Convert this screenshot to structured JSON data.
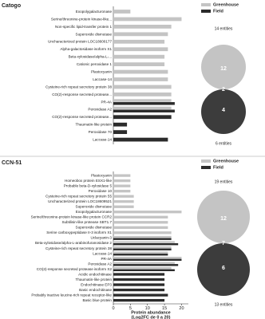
{
  "chart_data": [
    {
      "type": "bar",
      "orientation": "horizontal",
      "title": "Catogo",
      "categories": [
        "Exopolygalacturonase",
        "Serine/threonine-protein kinase-like...",
        "Non-specific lipid-transfer protein 1",
        "Superoxide dismutase",
        "Uncharacterized protein LOC18600177",
        "Alpha-galactosidase isoform X1",
        "Beta-xylosidase/alpha-L-...",
        "Cationic peroxidase 1",
        "Plastocyanin",
        "Laccase-14",
        "Cysteine-rich repeat secretory protein 38",
        "CO(2)-response secreted protease...",
        "PR-4A",
        "Peroxidase A2",
        "CO(2)-response secreted protease...",
        "Thaumatin-like protein",
        "Peroxidase 70",
        "Laccase-14"
      ],
      "series": [
        {
          "name": "Greenhouse",
          "color": "#c4c4c4",
          "values": [
            5,
            20,
            17,
            16,
            15,
            16,
            15,
            15,
            16,
            16,
            17,
            17,
            17,
            17,
            null,
            null,
            null,
            null
          ]
        },
        {
          "name": "Field",
          "color": "#2b2b2b",
          "values": [
            null,
            null,
            null,
            null,
            null,
            null,
            null,
            null,
            null,
            null,
            null,
            null,
            18,
            18,
            17,
            4,
            4,
            16
          ]
        }
      ],
      "xlim": [
        0,
        22
      ],
      "legend": "upper right",
      "venn": {
        "top_label": "14 entities",
        "top_only": 12,
        "both": 2,
        "bottom_only": 4,
        "bottom_label": "6 entities"
      }
    },
    {
      "type": "bar",
      "orientation": "horizontal",
      "title": "CCN-51",
      "categories": [
        "Plastocyanin",
        "Homeobox protein ESX1-like",
        "Probable beta-D-xylosidase 5",
        "Peroxidase 10",
        "Cysteine-rich repeat secretory protein 55",
        "Uncharacterized protein LOC18609521",
        "Superoxide dismutase",
        "Exopolygalacturonase",
        "Serine/threonine-protein kinase-like protein CCR2",
        "Subtilisin-like protease SBT1.7",
        "Superoxide dismutase",
        "Serine carboxypeptidase II-3 isoform X1",
        "Uclacyanin-3",
        "Beta-xylosidase/alpha-L-arabinofuranosidase 2",
        "Cysteine-rich repeat secretory protein 38",
        "Laccase-14",
        "PR-4A",
        "Peroxidase A2",
        "CO(2)-response secreted protease isoform X2",
        "Acidic endochitinase",
        "Thaumatin-like protein",
        "Endochitinase EP3",
        "Basic endochitinase",
        "Probably inactive leucine-rich repeat receptor-like",
        "Basic blue protein"
      ],
      "series": [
        {
          "name": "Greenhouse",
          "color": "#c4c4c4",
          "values": [
            5,
            5,
            5,
            5,
            6,
            6,
            6,
            20,
            16,
            16,
            16,
            17,
            17,
            18,
            17,
            16,
            20,
            18,
            17,
            null,
            null,
            null,
            null,
            null,
            null
          ]
        },
        {
          "name": "Field",
          "color": "#2b2b2b",
          "values": [
            null,
            null,
            null,
            null,
            null,
            null,
            null,
            null,
            null,
            null,
            null,
            null,
            17,
            19,
            17,
            16,
            20,
            19,
            18,
            15,
            15,
            15,
            15,
            16,
            15
          ]
        }
      ],
      "xlim": [
        0,
        22
      ],
      "xticks": [
        0,
        5,
        10,
        15,
        20
      ],
      "xlabel": [
        "Protein abundance",
        "(Log2FC de 0 a 20)"
      ],
      "legend": "upper right",
      "venn": {
        "top_label": "19 entities",
        "top_only": 12,
        "both": 7,
        "bottom_only": 6,
        "bottom_label": "13 entities"
      }
    }
  ]
}
